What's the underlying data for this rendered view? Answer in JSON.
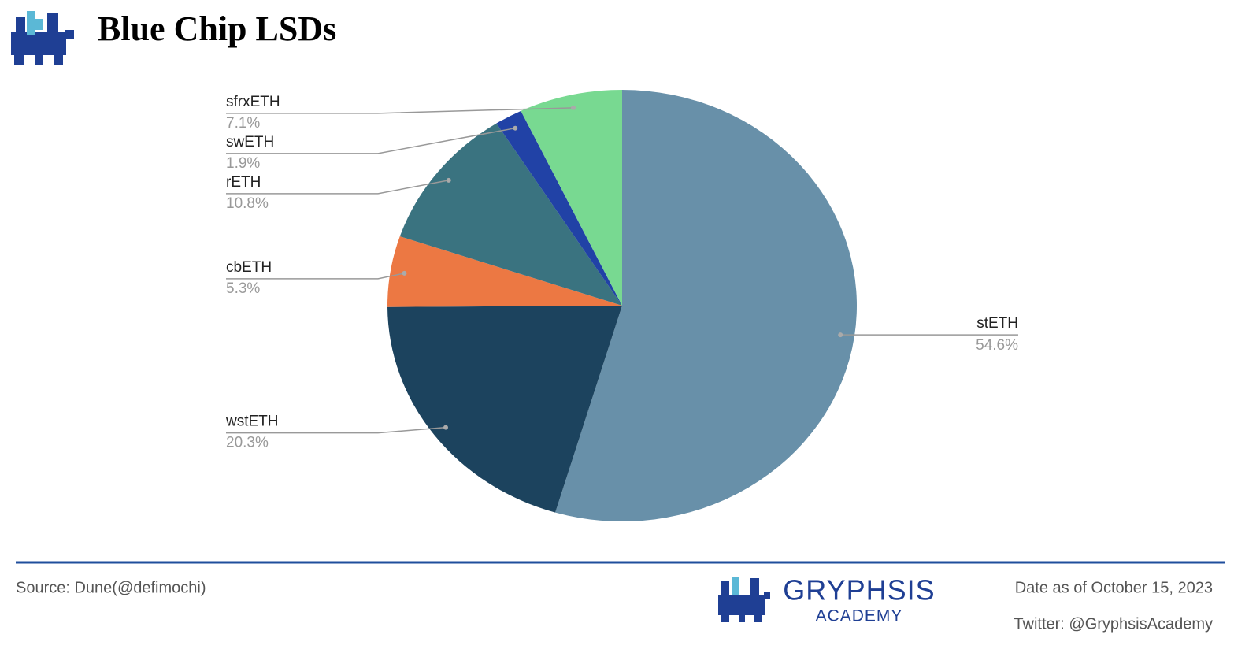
{
  "header": {
    "title": "Blue Chip LSDs"
  },
  "chart_data": {
    "type": "pie",
    "categories": [
      "stETH",
      "wstETH",
      "cbETH",
      "rETH",
      "swETH",
      "sfrxETH"
    ],
    "values": [
      54.6,
      20.3,
      5.3,
      10.8,
      1.9,
      7.1
    ],
    "value_labels": [
      "54.6%",
      "20.3%",
      "5.3%",
      "10.8%",
      "1.9%",
      "7.1%"
    ],
    "colors": [
      "#6890a9",
      "#1c435e",
      "#ec7843",
      "#3a7380",
      "#2142a6",
      "#78d991"
    ]
  },
  "footer": {
    "source": "Source: Dune(@defimochi)",
    "brand": "GRYPHSIS",
    "brand_sub": "ACADEMY",
    "date": "Date as of October 15, 2023",
    "twitter": "Twitter: @GryphsisAcademy"
  }
}
